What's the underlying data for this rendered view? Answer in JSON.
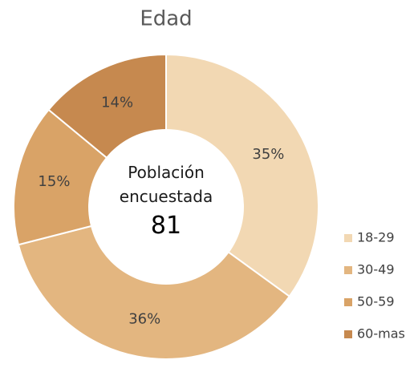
{
  "chart_data": {
    "type": "donut",
    "title": "Edad",
    "categories": [
      "18-29",
      "30-49",
      "50-59",
      "60-mas"
    ],
    "values": [
      35,
      36,
      15,
      14
    ],
    "value_labels": [
      "35%",
      "36%",
      "15%",
      "14%"
    ],
    "colors": [
      "#f2d8b3",
      "#e3b680",
      "#d9a367",
      "#c6894f"
    ],
    "center_label": "Población encuestada",
    "center_value": 81,
    "legend": "right"
  }
}
